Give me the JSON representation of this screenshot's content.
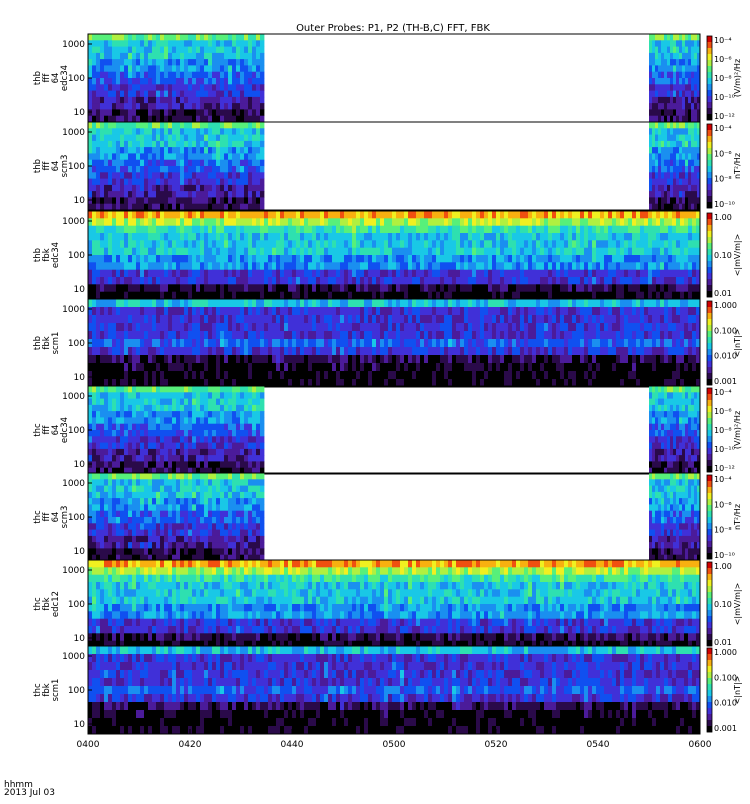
{
  "title": "Outer Probes: P1, P2 (TH-B,C) FFT, FBK",
  "footer": {
    "line1": "hhmm",
    "line2": "2013 Jul 03"
  },
  "x_ticks": [
    "0400",
    "0420",
    "0440",
    "0500",
    "0520",
    "0540",
    "0600"
  ],
  "colors": {
    "background": "#ffffff",
    "frame": "#000000",
    "colormap": [
      "#000000",
      "#2a0a4a",
      "#4b1b9a",
      "#4030d8",
      "#1050f0",
      "#1a8ff0",
      "#19c8e6",
      "#2ee0b0",
      "#57f07a",
      "#b0f040",
      "#f0f020",
      "#f8b010",
      "#f05010",
      "#d00000"
    ]
  },
  "chart_data": [
    {
      "type": "heatmap",
      "ylabel": [
        "thb",
        "fff",
        "64",
        "edc34"
      ],
      "y_ticks": [
        "10",
        "100",
        "1000"
      ],
      "colorbar_label": "(V/m)²/Hz",
      "colorbar_ticks": [
        "10⁻⁴",
        "10⁻⁶",
        "10⁻⁸",
        "10⁻¹⁰",
        "10⁻¹²"
      ],
      "data_spans": [
        [
          "0400",
          "0434"
        ],
        [
          "0550",
          "0600"
        ]
      ]
    },
    {
      "type": "heatmap",
      "ylabel": [
        "thb",
        "fff",
        "64",
        "scm3"
      ],
      "y_ticks": [
        "10",
        "100",
        "1000"
      ],
      "colorbar_label": "nT²/Hz",
      "colorbar_ticks": [
        "10⁻⁴",
        "10⁻⁶",
        "10⁻⁸",
        "10⁻¹⁰"
      ],
      "data_spans": [
        [
          "0400",
          "0434"
        ],
        [
          "0550",
          "0600"
        ]
      ]
    },
    {
      "type": "heatmap",
      "ylabel": [
        "thb",
        "fbk",
        "edc34"
      ],
      "y_ticks": [
        "10",
        "100",
        "1000"
      ],
      "colorbar_label": "<|mV/m|>",
      "colorbar_ticks": [
        "1.00",
        "0.10",
        "0.01"
      ],
      "data_spans": [
        [
          "0400",
          "0600"
        ]
      ]
    },
    {
      "type": "heatmap",
      "ylabel": [
        "thb",
        "fbk",
        "scm1"
      ],
      "y_ticks": [
        "10",
        "100",
        "1000"
      ],
      "colorbar_label": "<|nT|>",
      "colorbar_ticks": [
        "1.000",
        "0.100",
        "0.010",
        "0.001"
      ],
      "data_spans": [
        [
          "0400",
          "0600"
        ]
      ]
    },
    {
      "type": "heatmap",
      "ylabel": [
        "thc",
        "fff",
        "64",
        "edc34"
      ],
      "y_ticks": [
        "10",
        "100",
        "1000"
      ],
      "colorbar_label": "(V/m)²/Hz",
      "colorbar_ticks": [
        "10⁻⁴",
        "10⁻⁶",
        "10⁻⁸",
        "10⁻¹⁰",
        "10⁻¹²"
      ],
      "data_spans": [
        [
          "0400",
          "0434"
        ],
        [
          "0550",
          "0600"
        ]
      ]
    },
    {
      "type": "heatmap",
      "ylabel": [
        "thc",
        "fff",
        "64",
        "scm3"
      ],
      "y_ticks": [
        "10",
        "100",
        "1000"
      ],
      "colorbar_label": "nT²/Hz",
      "colorbar_ticks": [
        "10⁻⁴",
        "10⁻⁶",
        "10⁻⁸",
        "10⁻¹⁰"
      ],
      "data_spans": [
        [
          "0400",
          "0434"
        ],
        [
          "0550",
          "0600"
        ]
      ]
    },
    {
      "type": "heatmap",
      "ylabel": [
        "thc",
        "fbk",
        "edc12"
      ],
      "y_ticks": [
        "10",
        "100",
        "1000"
      ],
      "colorbar_label": "<|mV/m|>",
      "colorbar_ticks": [
        "1.00",
        "0.10",
        "0.01"
      ],
      "data_spans": [
        [
          "0400",
          "0600"
        ]
      ]
    },
    {
      "type": "heatmap",
      "ylabel": [
        "thc",
        "fbk",
        "scm1"
      ],
      "y_ticks": [
        "10",
        "100",
        "1000"
      ],
      "colorbar_label": "<|nT|>",
      "colorbar_ticks": [
        "1.000",
        "0.100",
        "0.010",
        "0.001"
      ],
      "data_spans": [
        [
          "0400",
          "0600"
        ]
      ]
    }
  ]
}
